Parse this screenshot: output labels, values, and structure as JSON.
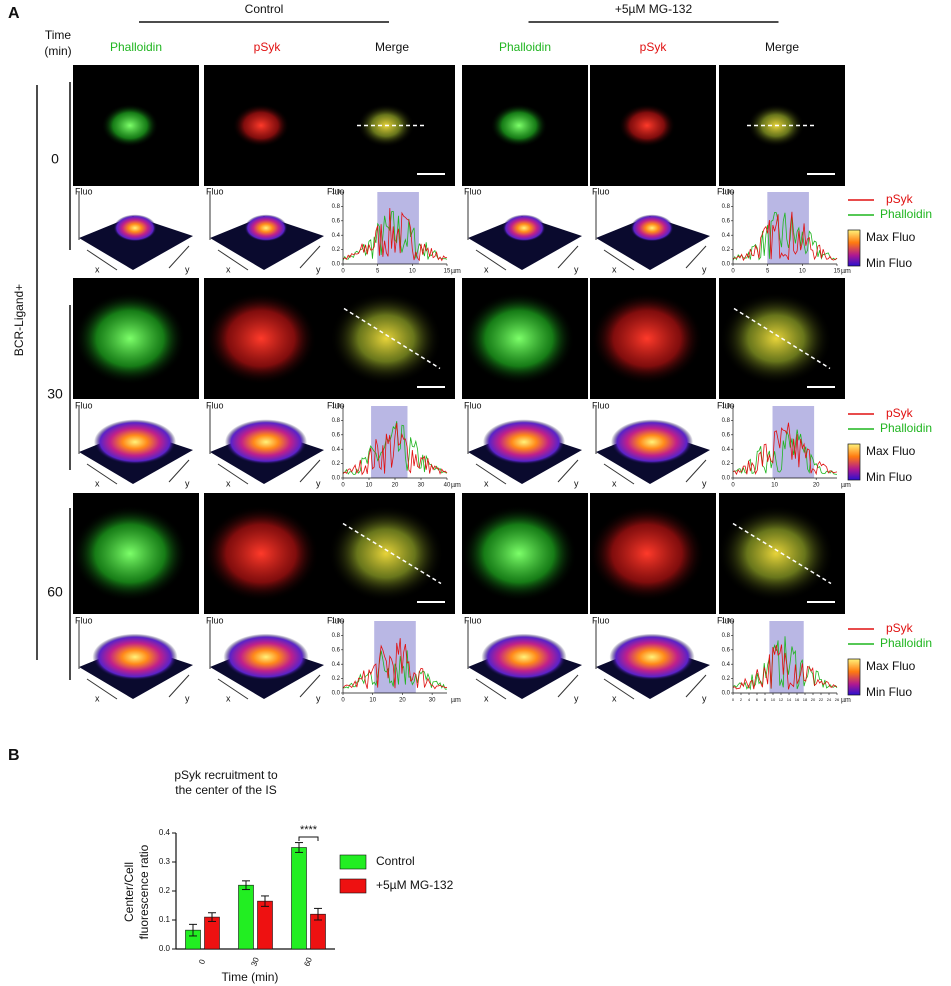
{
  "panel_a": {
    "label": "A",
    "time_header": [
      "Time",
      "(min)"
    ],
    "side_label": "BCR-Ligand+",
    "groups": [
      {
        "name": "Control",
        "columns": [
          "Phalloidin",
          "pSyk",
          "Merge"
        ]
      },
      {
        "name": "+5µM MG-132",
        "columns": [
          "Phalloidin",
          "pSyk",
          "Merge"
        ]
      }
    ],
    "rows": [
      "0",
      "30",
      "60"
    ],
    "surface_labels": {
      "z": "Fluo",
      "x": "x",
      "y": "y"
    },
    "legend": {
      "series": [
        {
          "name": "pSyk",
          "color": "#e01010"
        },
        {
          "name": "Phalloidin",
          "color": "#1fb51f"
        }
      ],
      "scale": [
        "Max Fluo",
        "Min Fluo"
      ]
    },
    "profiles": [
      {
        "y_label": "Fluo",
        "x_unit": "µm",
        "xlim": [
          0,
          15
        ],
        "xticks": [
          0,
          5,
          10,
          15
        ],
        "ylim": [
          0,
          1
        ],
        "yticks": [
          {
            "value": 0,
            "label": "0.0"
          },
          0.2,
          0.4,
          0.6,
          0.8,
          {
            "value": 1,
            "label": "1.0"
          }
        ]
      },
      {
        "y_label": "Fluo",
        "x_unit": "µm",
        "xlim": [
          0,
          15
        ],
        "xticks": [
          0,
          5,
          10,
          15
        ],
        "ylim": [
          0,
          1
        ],
        "yticks": [
          {
            "value": 0,
            "label": "0.0"
          },
          0.2,
          0.4,
          0.6,
          0.8,
          {
            "value": 1,
            "label": "1.0"
          }
        ]
      },
      {
        "y_label": "Fluo",
        "x_unit": "µm",
        "xlim": [
          0,
          40
        ],
        "xticks": [
          0,
          10,
          20,
          30,
          40
        ],
        "ylim": [
          0,
          1
        ],
        "yticks": [
          {
            "value": 0,
            "label": "0.0"
          },
          0.2,
          0.4,
          0.6,
          0.8,
          {
            "value": 1,
            "label": "1.0"
          }
        ]
      },
      {
        "y_label": "Fluo",
        "x_unit": "µm",
        "xlim": [
          0,
          25
        ],
        "xticks": [
          0,
          10,
          20
        ],
        "ylim": [
          0,
          1
        ],
        "yticks": [
          {
            "value": 0,
            "label": "0.0"
          },
          0.2,
          0.4,
          0.6,
          0.8,
          {
            "value": 1,
            "label": "1.0"
          }
        ]
      },
      {
        "y_label": "Fluo",
        "x_unit": "µm",
        "xlim": [
          0,
          35
        ],
        "xticks": [
          0,
          10,
          20,
          30
        ],
        "ylim": [
          0,
          1
        ],
        "yticks": [
          {
            "value": 0,
            "label": "0.0"
          },
          0.2,
          0.4,
          0.6,
          0.8,
          {
            "value": 1,
            "label": "1.0"
          }
        ]
      },
      {
        "y_label": "Fluo",
        "x_unit": "µm",
        "xlim": [
          0,
          26
        ],
        "xticks": [
          0,
          2,
          4,
          6,
          8,
          10,
          12,
          14,
          16,
          18,
          20,
          22,
          24,
          26
        ],
        "ylim": [
          0,
          1
        ],
        "yticks": [
          {
            "value": 0,
            "label": "0.0"
          },
          0.2,
          0.4,
          0.6,
          0.8,
          {
            "value": 1,
            "label": "1.0"
          }
        ]
      }
    ]
  },
  "panel_b": {
    "label": "B"
  },
  "chart_data": {
    "type": "bar",
    "title": [
      "pSyk recruitment to",
      "the center of the IS"
    ],
    "y_label": [
      "Center/Cell",
      "fluorescence ratio"
    ],
    "x_label": "Time (min)",
    "categories": [
      "0",
      "30",
      "60"
    ],
    "series": [
      {
        "name": "Control",
        "color": "#22ee22",
        "values": [
          0.065,
          0.22,
          0.35
        ],
        "errors": [
          0.02,
          0.015,
          0.017
        ]
      },
      {
        "name": "+5µM MG-132",
        "color": "#ee1111",
        "values": [
          0.11,
          0.165,
          0.12
        ],
        "errors": [
          0.015,
          0.018,
          0.02
        ]
      }
    ],
    "ylim": [
      0,
      0.4
    ],
    "yticks": [
      {
        "value": 0,
        "label": "0.0"
      },
      0.1,
      0.2,
      0.3,
      0.4
    ],
    "annotation": "****"
  }
}
